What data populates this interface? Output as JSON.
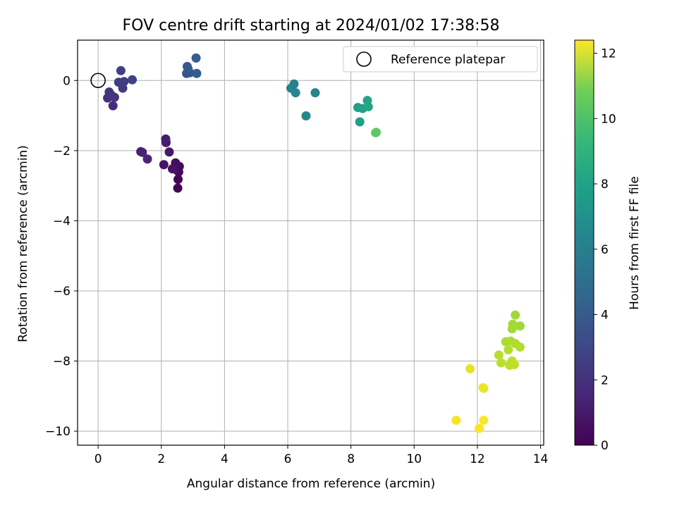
{
  "chart_data": {
    "type": "scatter",
    "title": "FOV centre drift starting at 2024/01/02 17:38:58",
    "xlabel": "Angular distance from reference (arcmin)",
    "ylabel": "Rotation from reference (arcmin)",
    "xlim": [
      -0.65,
      14.1
    ],
    "ylim": [
      -10.4,
      1.15
    ],
    "xticks": [
      0,
      2,
      4,
      6,
      8,
      10,
      12,
      14
    ],
    "yticks": [
      -10,
      -8,
      -6,
      -4,
      -2,
      0
    ],
    "grid": true,
    "colormap": "viridis",
    "legend": {
      "placement": "top-right",
      "entries": [
        "Reference platepar"
      ]
    },
    "reference": {
      "x": 0,
      "y": 0,
      "label": "Reference platepar"
    },
    "colorbar": {
      "label": "Hours from first FF file",
      "range": [
        0,
        12.4
      ],
      "ticks": [
        0,
        2,
        4,
        6,
        8,
        10,
        12
      ]
    },
    "points": [
      {
        "x": 2.52,
        "y": -3.07,
        "c": 0.05
      },
      {
        "x": 2.53,
        "y": -2.82,
        "c": 0.15
      },
      {
        "x": 2.55,
        "y": -2.61,
        "c": 0.25
      },
      {
        "x": 2.57,
        "y": -2.45,
        "c": 0.35
      },
      {
        "x": 2.45,
        "y": -2.35,
        "c": 0.45
      },
      {
        "x": 2.48,
        "y": -2.55,
        "c": 0.5
      },
      {
        "x": 2.35,
        "y": -2.52,
        "c": 0.6
      },
      {
        "x": 2.08,
        "y": -2.4,
        "c": 0.7
      },
      {
        "x": 2.25,
        "y": -2.04,
        "c": 0.8
      },
      {
        "x": 2.15,
        "y": -1.77,
        "c": 0.9
      },
      {
        "x": 2.14,
        "y": -1.67,
        "c": 1.0
      },
      {
        "x": 1.35,
        "y": -2.03,
        "c": 1.1
      },
      {
        "x": 1.4,
        "y": -2.05,
        "c": 1.2
      },
      {
        "x": 1.56,
        "y": -2.24,
        "c": 1.3
      },
      {
        "x": 0.47,
        "y": -0.72,
        "c": 1.6
      },
      {
        "x": 0.3,
        "y": -0.5,
        "c": 1.7
      },
      {
        "x": 0.35,
        "y": -0.33,
        "c": 1.8
      },
      {
        "x": 0.42,
        "y": -0.42,
        "c": 1.9
      },
      {
        "x": 0.52,
        "y": -0.48,
        "c": 2.0
      },
      {
        "x": 0.78,
        "y": -0.22,
        "c": 2.1
      },
      {
        "x": 0.65,
        "y": -0.05,
        "c": 2.2
      },
      {
        "x": 0.82,
        "y": -0.03,
        "c": 2.3
      },
      {
        "x": 0.72,
        "y": 0.28,
        "c": 2.4
      },
      {
        "x": 1.08,
        "y": 0.02,
        "c": 2.5
      },
      {
        "x": 2.8,
        "y": 0.2,
        "c": 3.2
      },
      {
        "x": 2.9,
        "y": 0.22,
        "c": 3.3
      },
      {
        "x": 2.82,
        "y": 0.4,
        "c": 3.4
      },
      {
        "x": 2.85,
        "y": 0.32,
        "c": 3.5
      },
      {
        "x": 3.1,
        "y": 0.64,
        "c": 3.6
      },
      {
        "x": 3.12,
        "y": 0.2,
        "c": 3.7
      },
      {
        "x": 6.2,
        "y": -0.1,
        "c": 5.4
      },
      {
        "x": 6.1,
        "y": -0.22,
        "c": 5.5
      },
      {
        "x": 6.25,
        "y": -0.35,
        "c": 5.6
      },
      {
        "x": 6.87,
        "y": -0.35,
        "c": 5.7
      },
      {
        "x": 6.58,
        "y": -1.01,
        "c": 5.8
      },
      {
        "x": 8.22,
        "y": -0.77,
        "c": 6.9
      },
      {
        "x": 8.28,
        "y": -1.18,
        "c": 7.0
      },
      {
        "x": 8.37,
        "y": -0.8,
        "c": 7.1
      },
      {
        "x": 8.52,
        "y": -0.57,
        "c": 7.2
      },
      {
        "x": 8.55,
        "y": -0.75,
        "c": 7.3
      },
      {
        "x": 8.8,
        "y": -1.48,
        "c": 9.1
      },
      {
        "x": 8.78,
        "y": -1.49,
        "c": 9.2
      },
      {
        "x": 13.2,
        "y": -6.69,
        "c": 10.6
      },
      {
        "x": 13.35,
        "y": -7.0,
        "c": 10.6
      },
      {
        "x": 13.12,
        "y": -6.95,
        "c": 10.65
      },
      {
        "x": 13.1,
        "y": -7.08,
        "c": 10.7
      },
      {
        "x": 12.9,
        "y": -7.45,
        "c": 10.8
      },
      {
        "x": 13.05,
        "y": -7.43,
        "c": 10.85
      },
      {
        "x": 13.2,
        "y": -7.5,
        "c": 10.9
      },
      {
        "x": 13.35,
        "y": -7.6,
        "c": 10.95
      },
      {
        "x": 12.98,
        "y": -7.68,
        "c": 11.0
      },
      {
        "x": 12.68,
        "y": -7.83,
        "c": 11.05
      },
      {
        "x": 12.75,
        "y": -8.05,
        "c": 11.1
      },
      {
        "x": 13.02,
        "y": -8.12,
        "c": 11.15
      },
      {
        "x": 13.17,
        "y": -8.1,
        "c": 11.2
      },
      {
        "x": 13.1,
        "y": -8.0,
        "c": 11.25
      },
      {
        "x": 11.77,
        "y": -8.22,
        "c": 11.9
      },
      {
        "x": 12.18,
        "y": -8.76,
        "c": 12.0
      },
      {
        "x": 12.2,
        "y": -8.78,
        "c": 12.05
      },
      {
        "x": 11.33,
        "y": -9.69,
        "c": 12.2
      },
      {
        "x": 12.06,
        "y": -9.92,
        "c": 12.3
      },
      {
        "x": 12.2,
        "y": -9.69,
        "c": 12.35
      }
    ]
  }
}
